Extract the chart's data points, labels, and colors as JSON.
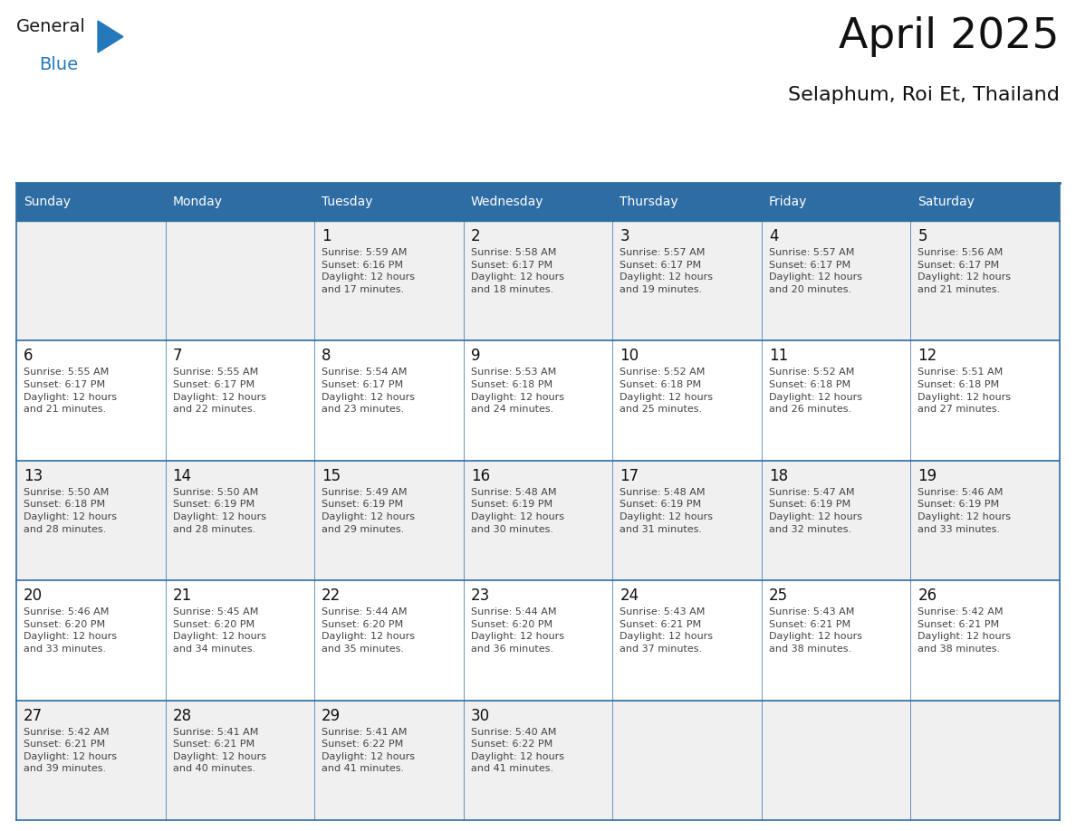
{
  "title": "April 2025",
  "subtitle": "Selaphum, Roi Et, Thailand",
  "header_bg_color": "#2E6DA4",
  "header_text_color": "#FFFFFF",
  "cell_bg_color_odd": "#F0F0F0",
  "cell_bg_color_even": "#FFFFFF",
  "day_number_color": "#111111",
  "info_text_color": "#444444",
  "border_color": "#2E6DA4",
  "days_of_week": [
    "Sunday",
    "Monday",
    "Tuesday",
    "Wednesday",
    "Thursday",
    "Friday",
    "Saturday"
  ],
  "logo_color1": "#1a1a1a",
  "logo_color2": "#2479BD",
  "weeks": [
    [
      {
        "day": "",
        "info": ""
      },
      {
        "day": "",
        "info": ""
      },
      {
        "day": "1",
        "info": "Sunrise: 5:59 AM\nSunset: 6:16 PM\nDaylight: 12 hours\nand 17 minutes."
      },
      {
        "day": "2",
        "info": "Sunrise: 5:58 AM\nSunset: 6:17 PM\nDaylight: 12 hours\nand 18 minutes."
      },
      {
        "day": "3",
        "info": "Sunrise: 5:57 AM\nSunset: 6:17 PM\nDaylight: 12 hours\nand 19 minutes."
      },
      {
        "day": "4",
        "info": "Sunrise: 5:57 AM\nSunset: 6:17 PM\nDaylight: 12 hours\nand 20 minutes."
      },
      {
        "day": "5",
        "info": "Sunrise: 5:56 AM\nSunset: 6:17 PM\nDaylight: 12 hours\nand 21 minutes."
      }
    ],
    [
      {
        "day": "6",
        "info": "Sunrise: 5:55 AM\nSunset: 6:17 PM\nDaylight: 12 hours\nand 21 minutes."
      },
      {
        "day": "7",
        "info": "Sunrise: 5:55 AM\nSunset: 6:17 PM\nDaylight: 12 hours\nand 22 minutes."
      },
      {
        "day": "8",
        "info": "Sunrise: 5:54 AM\nSunset: 6:17 PM\nDaylight: 12 hours\nand 23 minutes."
      },
      {
        "day": "9",
        "info": "Sunrise: 5:53 AM\nSunset: 6:18 PM\nDaylight: 12 hours\nand 24 minutes."
      },
      {
        "day": "10",
        "info": "Sunrise: 5:52 AM\nSunset: 6:18 PM\nDaylight: 12 hours\nand 25 minutes."
      },
      {
        "day": "11",
        "info": "Sunrise: 5:52 AM\nSunset: 6:18 PM\nDaylight: 12 hours\nand 26 minutes."
      },
      {
        "day": "12",
        "info": "Sunrise: 5:51 AM\nSunset: 6:18 PM\nDaylight: 12 hours\nand 27 minutes."
      }
    ],
    [
      {
        "day": "13",
        "info": "Sunrise: 5:50 AM\nSunset: 6:18 PM\nDaylight: 12 hours\nand 28 minutes."
      },
      {
        "day": "14",
        "info": "Sunrise: 5:50 AM\nSunset: 6:19 PM\nDaylight: 12 hours\nand 28 minutes."
      },
      {
        "day": "15",
        "info": "Sunrise: 5:49 AM\nSunset: 6:19 PM\nDaylight: 12 hours\nand 29 minutes."
      },
      {
        "day": "16",
        "info": "Sunrise: 5:48 AM\nSunset: 6:19 PM\nDaylight: 12 hours\nand 30 minutes."
      },
      {
        "day": "17",
        "info": "Sunrise: 5:48 AM\nSunset: 6:19 PM\nDaylight: 12 hours\nand 31 minutes."
      },
      {
        "day": "18",
        "info": "Sunrise: 5:47 AM\nSunset: 6:19 PM\nDaylight: 12 hours\nand 32 minutes."
      },
      {
        "day": "19",
        "info": "Sunrise: 5:46 AM\nSunset: 6:19 PM\nDaylight: 12 hours\nand 33 minutes."
      }
    ],
    [
      {
        "day": "20",
        "info": "Sunrise: 5:46 AM\nSunset: 6:20 PM\nDaylight: 12 hours\nand 33 minutes."
      },
      {
        "day": "21",
        "info": "Sunrise: 5:45 AM\nSunset: 6:20 PM\nDaylight: 12 hours\nand 34 minutes."
      },
      {
        "day": "22",
        "info": "Sunrise: 5:44 AM\nSunset: 6:20 PM\nDaylight: 12 hours\nand 35 minutes."
      },
      {
        "day": "23",
        "info": "Sunrise: 5:44 AM\nSunset: 6:20 PM\nDaylight: 12 hours\nand 36 minutes."
      },
      {
        "day": "24",
        "info": "Sunrise: 5:43 AM\nSunset: 6:21 PM\nDaylight: 12 hours\nand 37 minutes."
      },
      {
        "day": "25",
        "info": "Sunrise: 5:43 AM\nSunset: 6:21 PM\nDaylight: 12 hours\nand 38 minutes."
      },
      {
        "day": "26",
        "info": "Sunrise: 5:42 AM\nSunset: 6:21 PM\nDaylight: 12 hours\nand 38 minutes."
      }
    ],
    [
      {
        "day": "27",
        "info": "Sunrise: 5:42 AM\nSunset: 6:21 PM\nDaylight: 12 hours\nand 39 minutes."
      },
      {
        "day": "28",
        "info": "Sunrise: 5:41 AM\nSunset: 6:21 PM\nDaylight: 12 hours\nand 40 minutes."
      },
      {
        "day": "29",
        "info": "Sunrise: 5:41 AM\nSunset: 6:22 PM\nDaylight: 12 hours\nand 41 minutes."
      },
      {
        "day": "30",
        "info": "Sunrise: 5:40 AM\nSunset: 6:22 PM\nDaylight: 12 hours\nand 41 minutes."
      },
      {
        "day": "",
        "info": ""
      },
      {
        "day": "",
        "info": ""
      },
      {
        "day": "",
        "info": ""
      }
    ]
  ]
}
